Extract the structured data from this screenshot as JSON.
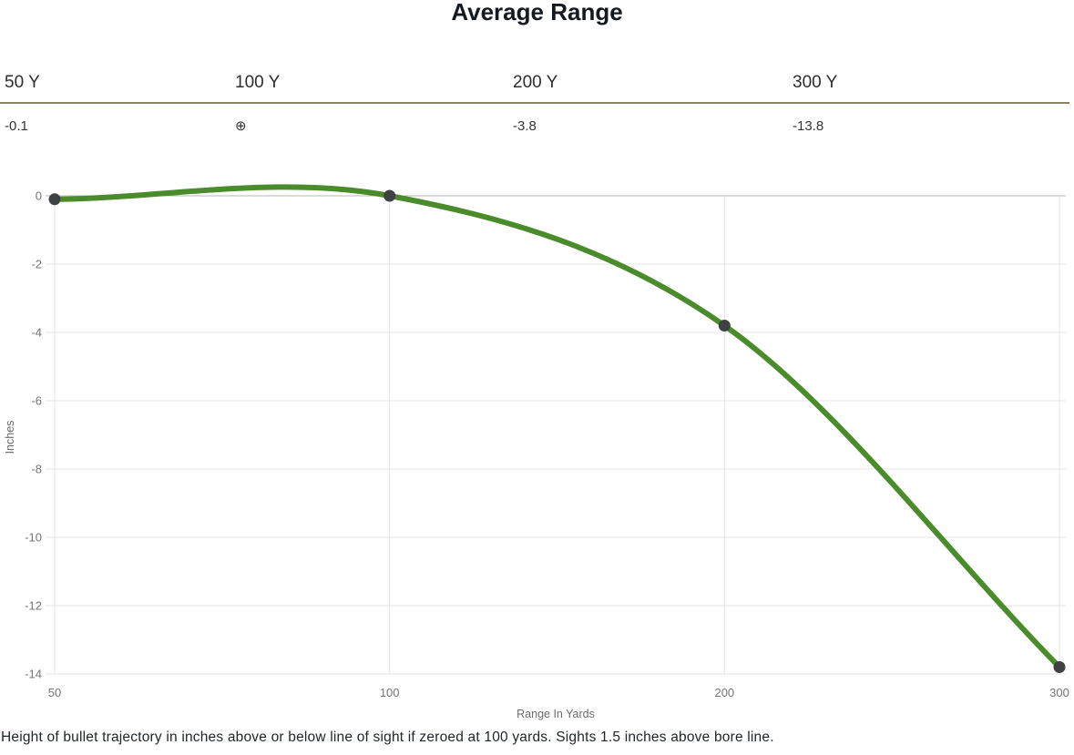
{
  "page": {
    "title": "Average Range",
    "footnote": "Height of bullet trajectory in inches above or below line of sight if zeroed at 100 yards. Sights 1.5 inches above bore line."
  },
  "summary_table": {
    "columns": [
      {
        "label": "50 Y",
        "value": "-0.1"
      },
      {
        "label": "100 Y",
        "value": "⊕"
      },
      {
        "label": "200 Y",
        "value": "-3.8"
      },
      {
        "label": "300 Y",
        "value": "-13.8"
      }
    ],
    "zero_marker_icon": "crosshair-zero-icon",
    "zero_marker_symbol": "⊕"
  },
  "chart_data": {
    "type": "line",
    "title": "Average Range",
    "categories": [
      "50",
      "100",
      "200",
      "300"
    ],
    "x_yards": [
      50,
      100,
      200,
      300
    ],
    "values": [
      -0.1,
      0,
      -3.8,
      -13.8
    ],
    "series": [
      {
        "name": "Average Range",
        "values": [
          -0.1,
          0,
          -3.8,
          -13.8
        ]
      }
    ],
    "xlabel": "Range In Yards",
    "ylabel": "Inches",
    "ylim": [
      -14,
      0
    ],
    "y_ticks": [
      0,
      -2,
      -4,
      -6,
      -8,
      -10,
      -12,
      -14
    ],
    "grid": true,
    "legend": "none",
    "curve": "smooth",
    "colors": {
      "line": "#4a8b2c",
      "marker": "#3f4242",
      "gridline": "#e4e4e4",
      "baseline": "#b7b7b7",
      "tick_label": "#757575",
      "axis_title": "#6b6b6b"
    }
  }
}
